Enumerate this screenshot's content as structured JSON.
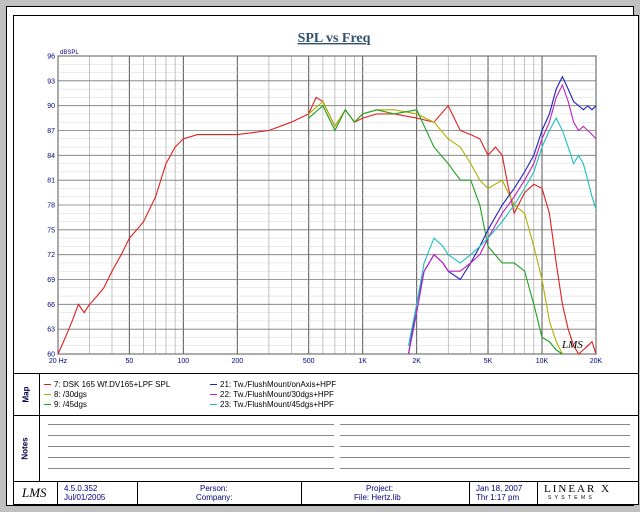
{
  "chart_data": {
    "type": "line",
    "title": "SPL vs Freq",
    "ylabel": "dBSPL",
    "xscale": "log",
    "xlim": [
      20,
      20000
    ],
    "ylim": [
      60,
      96
    ],
    "grid": true,
    "x_tick_labels": [
      "20 Hz",
      "50",
      "100",
      "200",
      "500",
      "1K",
      "2K",
      "5K",
      "10K",
      "20K"
    ],
    "x_tick_values": [
      20,
      50,
      100,
      200,
      500,
      1000,
      2000,
      5000,
      10000,
      20000
    ],
    "y_tick_labels": [
      "96",
      "93",
      "90",
      "87",
      "84",
      "81",
      "78",
      "75",
      "72",
      "69",
      "66",
      "63",
      "60"
    ],
    "y_tick_values": [
      96,
      93,
      90,
      87,
      84,
      81,
      78,
      75,
      72,
      69,
      66,
      63,
      60
    ],
    "series": [
      {
        "name": "7: DSK 165 Wf.DV165+LPF SPL",
        "color": "#e02020",
        "x": [
          20,
          22,
          24,
          26,
          28,
          30,
          33,
          36,
          40,
          45,
          50,
          55,
          60,
          70,
          80,
          90,
          100,
          120,
          150,
          200,
          300,
          400,
          500,
          550,
          600,
          700,
          800,
          900,
          1000,
          1200,
          1500,
          2000,
          2500,
          3000,
          3500,
          4000,
          4500,
          5000,
          5500,
          6000,
          6500,
          7000,
          8000,
          9000,
          10000,
          11000,
          12000,
          13000,
          14000,
          15000,
          16000,
          17000,
          18000,
          19000,
          20000
        ],
        "y": [
          60,
          62,
          64,
          66,
          65,
          66,
          67,
          68,
          70,
          72,
          74,
          75,
          76,
          79,
          83,
          85,
          86,
          86.5,
          86.5,
          86.5,
          87,
          88,
          89,
          91,
          90.5,
          87.5,
          89.5,
          88,
          88.5,
          89,
          89,
          88.5,
          88,
          90,
          87,
          86.5,
          86,
          84,
          85,
          84,
          80,
          77,
          79.5,
          80.5,
          80,
          77,
          71,
          66,
          63,
          61,
          60,
          60.5,
          61,
          61.5,
          60
        ]
      },
      {
        "name": "8: /30dgs",
        "color": "#b0b000",
        "x": [
          500,
          600,
          700,
          800,
          900,
          1000,
          1200,
          1500,
          2000,
          2500,
          3000,
          3500,
          4000,
          4500,
          5000,
          6000,
          7000,
          8000,
          9000,
          10000,
          11000,
          12000,
          13000
        ],
        "y": [
          89,
          90.5,
          87.5,
          89.5,
          88,
          89,
          89.5,
          89.5,
          89,
          88,
          86,
          85,
          83,
          81,
          80,
          81,
          78,
          77,
          73,
          69,
          64,
          61.5,
          60
        ]
      },
      {
        "name": "9: /45dgs",
        "color": "#20a020",
        "x": [
          500,
          600,
          700,
          800,
          900,
          1000,
          1200,
          1500,
          2000,
          2500,
          3000,
          3500,
          4000,
          4500,
          5000,
          6000,
          7000,
          8000,
          9000,
          10000,
          11000,
          12000,
          13000
        ],
        "y": [
          88.5,
          90,
          87,
          89.5,
          88,
          89,
          89.5,
          89,
          89.5,
          85,
          83,
          81,
          81,
          78,
          73,
          71,
          71,
          70,
          66,
          62,
          61.5,
          60.5,
          60
        ]
      },
      {
        "name": "21: Tw./FlushMount/onAxis+HPF",
        "color": "#2020c0",
        "x": [
          1800,
          2000,
          2200,
          2500,
          2800,
          3000,
          3500,
          4000,
          4500,
          5000,
          6000,
          7000,
          8000,
          9000,
          10000,
          11000,
          12000,
          13000,
          14000,
          15000,
          16000,
          17000,
          18000,
          19000,
          20000
        ],
        "y": [
          60,
          66,
          70,
          72,
          71,
          70,
          69,
          71,
          73,
          75,
          78,
          80,
          82,
          84,
          87,
          89,
          92,
          93.5,
          92,
          90.5,
          90,
          89.5,
          90,
          89.5,
          90
        ]
      },
      {
        "name": "22: Tw./FlushMount/30dgs+HPF",
        "color": "#c020c0",
        "x": [
          1800,
          2000,
          2200,
          2500,
          2800,
          3000,
          3500,
          4000,
          4500,
          5000,
          6000,
          7000,
          8000,
          9000,
          10000,
          11000,
          12000,
          13000,
          14000,
          15000,
          16000,
          17000,
          18000,
          19000,
          20000
        ],
        "y": [
          60,
          65,
          70,
          72,
          71,
          70,
          70,
          71,
          72,
          74,
          77,
          79,
          81,
          83,
          86,
          88,
          91,
          92.5,
          90.5,
          88,
          87,
          87.5,
          87,
          86.5,
          86
        ]
      },
      {
        "name": "23: Tw./FlushMount/45dgs+HPF",
        "color": "#20c0c0",
        "x": [
          1800,
          2000,
          2200,
          2500,
          2800,
          3000,
          3500,
          4000,
          4500,
          5000,
          6000,
          7000,
          8000,
          9000,
          10000,
          11000,
          12000,
          13000,
          14000,
          15000,
          16000,
          17000,
          18000,
          19000,
          20000
        ],
        "y": [
          61,
          66,
          71,
          74,
          73,
          72,
          71,
          72,
          73,
          74,
          76,
          78,
          80,
          82,
          85,
          87,
          88.5,
          87,
          85,
          83,
          84,
          83,
          81,
          79,
          77.5
        ]
      }
    ]
  },
  "sections": {
    "map": "Map",
    "notes": "Notes"
  },
  "footer": {
    "version": "4.5.0.352",
    "version_date": "Jul/01/2005",
    "person_label": "Person:",
    "company_label": "Company:",
    "project_label": "Project:",
    "file_label": "File: Hertz.lib",
    "date": "Jan 18, 2007",
    "time": "Thr  1:17 pm",
    "brand": "LINEAR X",
    "brand_sub": "S Y S T E M S",
    "logo_text": "LMS"
  },
  "watermark": "LMS"
}
